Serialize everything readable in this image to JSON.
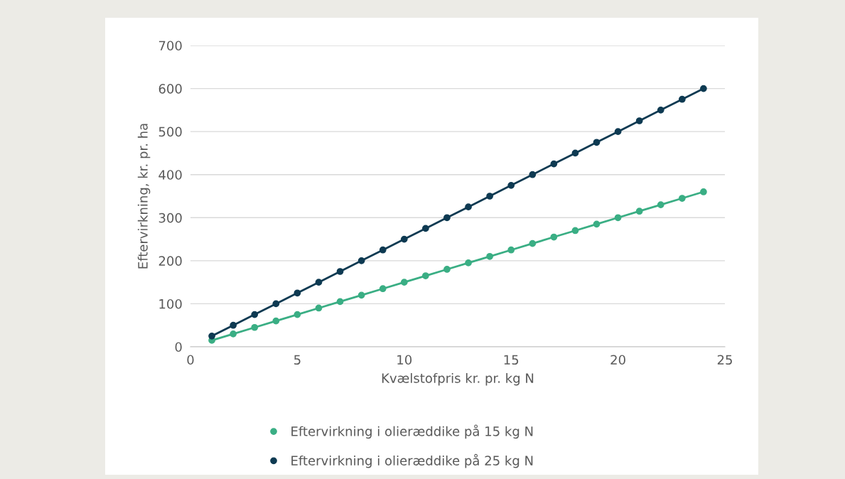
{
  "chart_data": {
    "type": "line",
    "xlabel": "Kvælstofpris kr. pr. kg N",
    "ylabel": "Eftervirkning, kr. pr. ha",
    "x": [
      1,
      2,
      3,
      4,
      5,
      6,
      7,
      8,
      9,
      10,
      11,
      12,
      13,
      14,
      15,
      16,
      17,
      18,
      19,
      20,
      21,
      22,
      23,
      24
    ],
    "series": [
      {
        "name": "Eftervirkning i olieræddike på 15 kg N",
        "color": "#3aae84",
        "values": [
          15,
          30,
          45,
          60,
          75,
          90,
          105,
          120,
          135,
          150,
          165,
          180,
          195,
          210,
          225,
          240,
          255,
          270,
          285,
          300,
          315,
          330,
          345,
          360
        ]
      },
      {
        "name": "Eftervirkning i olieræddike på 25 kg N",
        "color": "#0e3a52",
        "values": [
          25,
          50,
          75,
          100,
          125,
          150,
          175,
          200,
          225,
          250,
          275,
          300,
          325,
          350,
          375,
          400,
          425,
          450,
          475,
          500,
          525,
          550,
          575,
          600
        ]
      }
    ],
    "xlim": [
      0,
      25
    ],
    "xticks": [
      0,
      5,
      10,
      15,
      20,
      25
    ],
    "ylim": [
      0,
      700
    ],
    "yticks": [
      0,
      100,
      200,
      300,
      400,
      500,
      600,
      700
    ],
    "grid": "y",
    "legend": "bottom",
    "marker": "circle",
    "line_style": "solid"
  }
}
